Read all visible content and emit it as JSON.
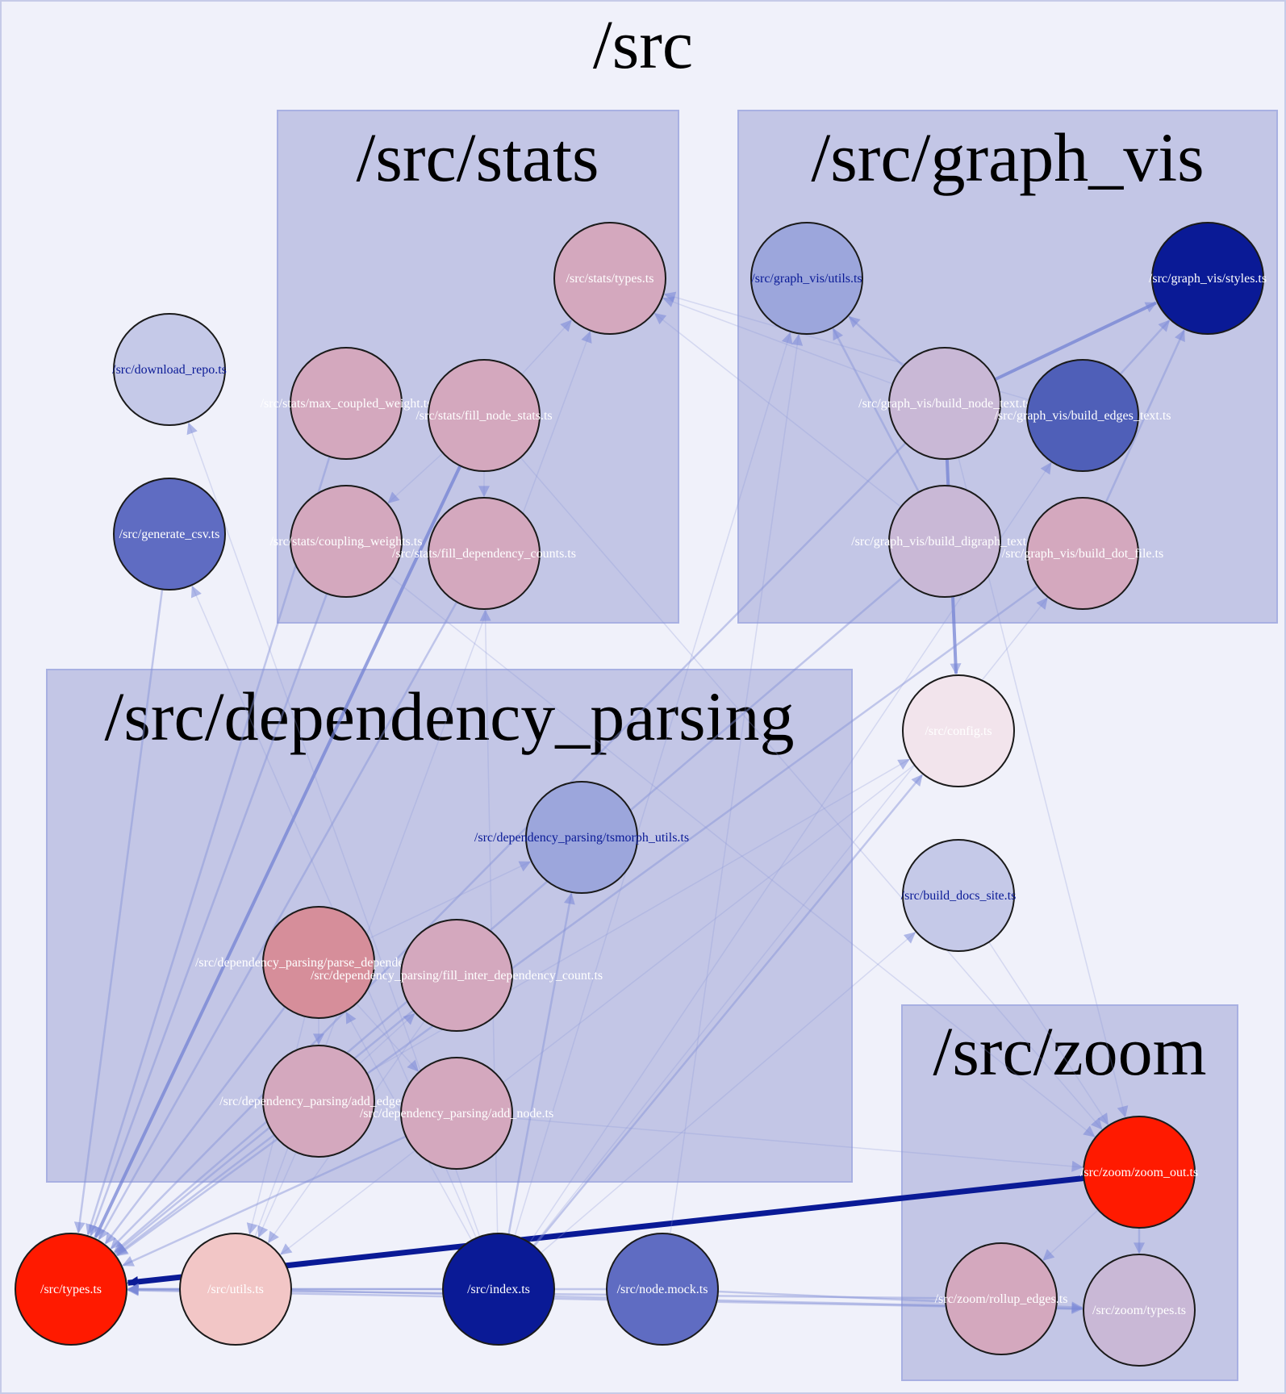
{
  "root": {
    "title": "/src"
  },
  "clusters": [
    {
      "id": "stats",
      "label": "/src/stats"
    },
    {
      "id": "graph_vis",
      "label": "/src/graph_vis"
    },
    {
      "id": "dependency_parsing",
      "label": "/src/dependency_parsing"
    },
    {
      "id": "zoom",
      "label": "/src/zoom"
    }
  ],
  "nodes": [
    {
      "id": "stats_types",
      "label": "/src/stats/types.ts",
      "fill": "#d4a8be",
      "text_color": "#ffffff"
    },
    {
      "id": "max_coupled",
      "label": "/src/stats/max_coupled_weight.ts",
      "fill": "#d4a8be",
      "text_color": "#ffffff"
    },
    {
      "id": "fill_node_stats",
      "label": "/src/stats/fill_node_stats.ts",
      "fill": "#d4a8be",
      "text_color": "#ffffff"
    },
    {
      "id": "coupling_weights",
      "label": "/src/stats/coupling_weights.ts",
      "fill": "#d4a8be",
      "text_color": "#ffffff"
    },
    {
      "id": "fill_dep_counts",
      "label": "/src/stats/fill_dependency_counts.ts",
      "fill": "#d4a8be",
      "text_color": "#ffffff"
    },
    {
      "id": "gv_utils",
      "label": "/src/graph_vis/utils.ts",
      "fill": "#9ca6dc",
      "text_color": "#0a1a96"
    },
    {
      "id": "gv_styles",
      "label": "/src/graph_vis/styles.ts",
      "fill": "#0a1a96",
      "text_color": "#ffffff"
    },
    {
      "id": "build_node_text",
      "label": "/src/graph_vis/build_node_text.ts",
      "fill": "#c9b8d6",
      "text_color": "#ffffff"
    },
    {
      "id": "build_edges_text",
      "label": "/src/graph_vis/build_edges_text.ts",
      "fill": "#4f5fb8",
      "text_color": "#ffffff"
    },
    {
      "id": "build_digraph_text",
      "label": "/src/graph_vis/build_digraph_text.ts",
      "fill": "#c9b8d6",
      "text_color": "#ffffff"
    },
    {
      "id": "build_dot_file",
      "label": "/src/graph_vis/build_dot_file.ts",
      "fill": "#d4a8be",
      "text_color": "#ffffff"
    },
    {
      "id": "download_repo",
      "label": "/src/download_repo.ts",
      "fill": "#c5c9e8",
      "text_color": "#0a1a96"
    },
    {
      "id": "generate_csv",
      "label": "/src/generate_csv.ts",
      "fill": "#5f6cc2",
      "text_color": "#ffffff"
    },
    {
      "id": "config",
      "label": "/src/config.ts",
      "fill": "#f2e4ec",
      "text_color": "#ffffff"
    },
    {
      "id": "build_docs_site",
      "label": "/src/build_docs_site.ts",
      "fill": "#c5c9e8",
      "text_color": "#0a1a96"
    },
    {
      "id": "tsmorph_utils",
      "label": "/src/dependency_parsing/tsmorph_utils.ts",
      "fill": "#9ca6dc",
      "text_color": "#0a1a96"
    },
    {
      "id": "parse_deps",
      "label": "/src/dependency_parsing/parse_dependencies.ts",
      "fill": "#d68e9a",
      "text_color": "#ffffff"
    },
    {
      "id": "fill_inter",
      "label": "/src/dependency_parsing/fill_inter_dependency_count.ts",
      "fill": "#d4a8be",
      "text_color": "#ffffff"
    },
    {
      "id": "add_edges",
      "label": "/src/dependency_parsing/add_edges.ts",
      "fill": "#d4a8be",
      "text_color": "#ffffff"
    },
    {
      "id": "add_node",
      "label": "/src/dependency_parsing/add_node.ts",
      "fill": "#d4a8be",
      "text_color": "#ffffff"
    },
    {
      "id": "zoom_out",
      "label": "/src/zoom/zoom_out.ts",
      "fill": "#ff1a00",
      "text_color": "#ffffff"
    },
    {
      "id": "rollup_edges",
      "label": "/src/zoom/rollup_edges.ts",
      "fill": "#d4a8be",
      "text_color": "#ffffff"
    },
    {
      "id": "zoom_types",
      "label": "/src/zoom/types.ts",
      "fill": "#c9b8d6",
      "text_color": "#ffffff"
    },
    {
      "id": "types",
      "label": "/src/types.ts",
      "fill": "#ff1a00",
      "text_color": "#ffffff"
    },
    {
      "id": "utils",
      "label": "/src/utils.ts",
      "fill": "#f2c6c6",
      "text_color": "#ffffff"
    },
    {
      "id": "index",
      "label": "/src/index.ts",
      "fill": "#0a1a96",
      "text_color": "#ffffff"
    },
    {
      "id": "node_mock",
      "label": "/src/node.mock.ts",
      "fill": "#5f6cc2",
      "text_color": "#ffffff"
    }
  ],
  "edges": [
    {
      "from": "zoom_out",
      "to": "types",
      "weight": 3
    },
    {
      "from": "fill_node_stats",
      "to": "types",
      "weight": 2
    },
    {
      "from": "build_node_text",
      "to": "gv_styles",
      "weight": 2
    },
    {
      "from": "build_node_text",
      "to": "config",
      "weight": 1.5
    },
    {
      "from": "build_edges_text",
      "to": "gv_styles",
      "weight": 1
    },
    {
      "from": "build_dot_file",
      "to": "gv_styles",
      "weight": 1
    },
    {
      "from": "build_digraph_text",
      "to": "gv_utils",
      "weight": 1
    },
    {
      "from": "build_node_text",
      "to": "gv_utils",
      "weight": 1
    },
    {
      "from": "build_edges_text",
      "to": "stats_types",
      "weight": 0.5
    },
    {
      "from": "build_node_text",
      "to": "stats_types",
      "weight": 0.5
    },
    {
      "from": "build_digraph_text",
      "to": "stats_types",
      "weight": 0.5
    },
    {
      "from": "fill_node_stats",
      "to": "coupling_weights",
      "weight": 0.5
    },
    {
      "from": "fill_node_stats",
      "to": "stats_types",
      "weight": 0.5
    },
    {
      "from": "max_coupled",
      "to": "types",
      "weight": 1
    },
    {
      "from": "coupling_weights",
      "to": "types",
      "weight": 1
    },
    {
      "from": "fill_dep_counts",
      "to": "types",
      "weight": 1
    },
    {
      "from": "generate_csv",
      "to": "types",
      "weight": 1
    },
    {
      "from": "build_digraph_text",
      "to": "types",
      "weight": 1
    },
    {
      "from": "build_node_text",
      "to": "types",
      "weight": 1
    },
    {
      "from": "build_dot_file",
      "to": "types",
      "weight": 1
    },
    {
      "from": "parse_deps",
      "to": "types",
      "weight": 1
    },
    {
      "from": "fill_inter",
      "to": "types",
      "weight": 1
    },
    {
      "from": "add_edges",
      "to": "types",
      "weight": 1
    },
    {
      "from": "add_node",
      "to": "types",
      "weight": 1
    },
    {
      "from": "utils",
      "to": "types",
      "weight": 1
    },
    {
      "from": "index",
      "to": "types",
      "weight": 1
    },
    {
      "from": "node_mock",
      "to": "types",
      "weight": 1
    },
    {
      "from": "rollup_edges",
      "to": "types",
      "weight": 1
    },
    {
      "from": "zoom_types",
      "to": "types",
      "weight": 1
    },
    {
      "from": "zoom_out",
      "to": "zoom_types",
      "weight": 1
    },
    {
      "from": "zoom_out",
      "to": "rollup_edges",
      "weight": 0.5
    },
    {
      "from": "index",
      "to": "tsmorph_utils",
      "weight": 1
    },
    {
      "from": "index",
      "to": "config",
      "weight": 1
    },
    {
      "from": "index",
      "to": "fill_dep_counts",
      "weight": 0.5
    },
    {
      "from": "index",
      "to": "gv_utils",
      "weight": 0.5
    },
    {
      "from": "index",
      "to": "parse_deps",
      "weight": 0.5
    },
    {
      "from": "index",
      "to": "generate_csv",
      "weight": 0.5
    },
    {
      "from": "index",
      "to": "build_dot_file",
      "weight": 0.5
    },
    {
      "from": "utils",
      "to": "stats_types",
      "weight": 0.5
    },
    {
      "from": "parse_deps",
      "to": "add_edges",
      "weight": 0.5
    },
    {
      "from": "parse_deps",
      "to": "add_node",
      "weight": 0.5
    },
    {
      "from": "parse_deps",
      "to": "tsmorph_utils",
      "weight": 0.5
    },
    {
      "from": "parse_deps",
      "to": "utils",
      "weight": 0.5
    },
    {
      "from": "add_edges",
      "to": "utils",
      "weight": 0.5
    },
    {
      "from": "fill_inter",
      "to": "utils",
      "weight": 0.5
    },
    {
      "from": "add_node",
      "to": "zoom_out",
      "weight": 0.5
    },
    {
      "from": "fill_node_stats",
      "to": "zoom_out",
      "weight": 0.5
    },
    {
      "from": "build_node_text",
      "to": "zoom_out",
      "weight": 0.5
    },
    {
      "from": "coupling_weights",
      "to": "zoom_out",
      "weight": 0.5
    },
    {
      "from": "build_docs_site",
      "to": "zoom_out",
      "weight": 0.5
    },
    {
      "from": "index",
      "to": "build_docs_site",
      "weight": 0.5
    },
    {
      "from": "index",
      "to": "download_repo",
      "weight": 0.5
    },
    {
      "from": "index",
      "to": "build_edges_text",
      "weight": 0.5
    },
    {
      "from": "add_edges",
      "to": "config",
      "weight": 0.5
    },
    {
      "from": "config",
      "to": "utils",
      "weight": 0.5
    },
    {
      "from": "add_edges",
      "to": "fill_inter",
      "weight": 0.5
    },
    {
      "from": "utils",
      "to": "zoom_types",
      "weight": 1
    },
    {
      "from": "node_mock",
      "to": "zoom_types",
      "weight": 1
    },
    {
      "from": "node_mock",
      "to": "gv_utils",
      "weight": 0.5
    },
    {
      "from": "fill_node_stats",
      "to": "fill_dep_counts",
      "weight": 0.5
    }
  ]
}
